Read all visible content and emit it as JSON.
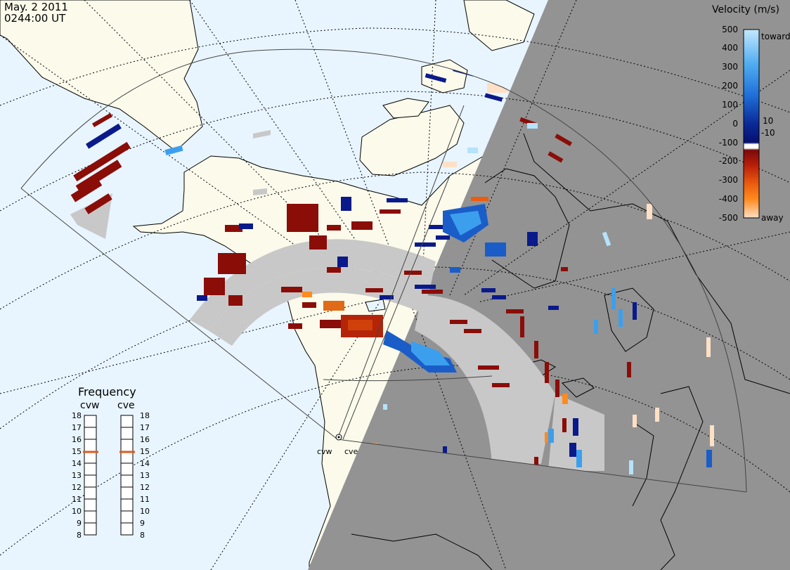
{
  "header": {
    "date": "May. 2 2011",
    "time": "0244:00 UT"
  },
  "colorbar": {
    "title": "Velocity (m/s)",
    "ticks": [
      "500",
      "400",
      "300",
      "200",
      "100",
      "0",
      "-100",
      "-200",
      "-300",
      "-400",
      "-500"
    ],
    "tick_values": [
      500,
      400,
      300,
      200,
      100,
      0,
      -100,
      -200,
      -300,
      -400,
      -500
    ],
    "inner_labels": [
      "10",
      "-10"
    ],
    "toward_label": "toward",
    "away_label": "away",
    "colors": [
      "#fde0c5",
      "#fdb77a",
      "#ff8a1e",
      "#ec5c0f",
      "#cc2a0a",
      "#9e1608",
      "#7a0a0a",
      "#ffffff",
      "#06106e",
      "#0a2fa0",
      "#1659c6",
      "#2a86e6",
      "#5cb4f5",
      "#b6e2fb"
    ]
  },
  "legend_ground_scatter": "#c8c8c8",
  "map_colors": {
    "ocean_day": "#e8f5ff",
    "land_day": "#fbfaeb",
    "night": "#939393"
  },
  "radars": {
    "west": "cvw",
    "east": "cve"
  },
  "frequency": {
    "title": "Frequency",
    "left_label": "cvw",
    "right_label": "cve",
    "scale": [
      "18",
      "17",
      "16",
      "15",
      "14",
      "13",
      "12",
      "11",
      "10",
      "9",
      "8"
    ],
    "cvw_mhz": 15,
    "cve_mhz": 15,
    "marker_color": "#e05a1e"
  }
}
